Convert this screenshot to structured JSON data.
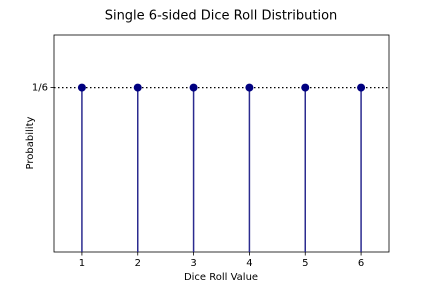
{
  "chart_data": {
    "type": "stem",
    "title": "Single 6-sided Dice Roll Distribution",
    "xlabel": "Dice Roll Value",
    "ylabel": "Probability",
    "x": [
      1,
      2,
      3,
      4,
      5,
      6
    ],
    "series": [
      {
        "name": "probability",
        "color": "#000080",
        "stem_color": "#2b2b8f",
        "values": [
          0.16667,
          0.16667,
          0.16667,
          0.16667,
          0.16667,
          0.16667
        ]
      }
    ],
    "xlim": [
      0.5,
      6.5
    ],
    "xticks": [
      1,
      2,
      3,
      4,
      5,
      6
    ],
    "ylim": [
      0,
      0.22
    ],
    "yticks": [
      {
        "value": 0.16667,
        "label": "1/6"
      }
    ],
    "hline": 0.16667,
    "grid": false
  }
}
